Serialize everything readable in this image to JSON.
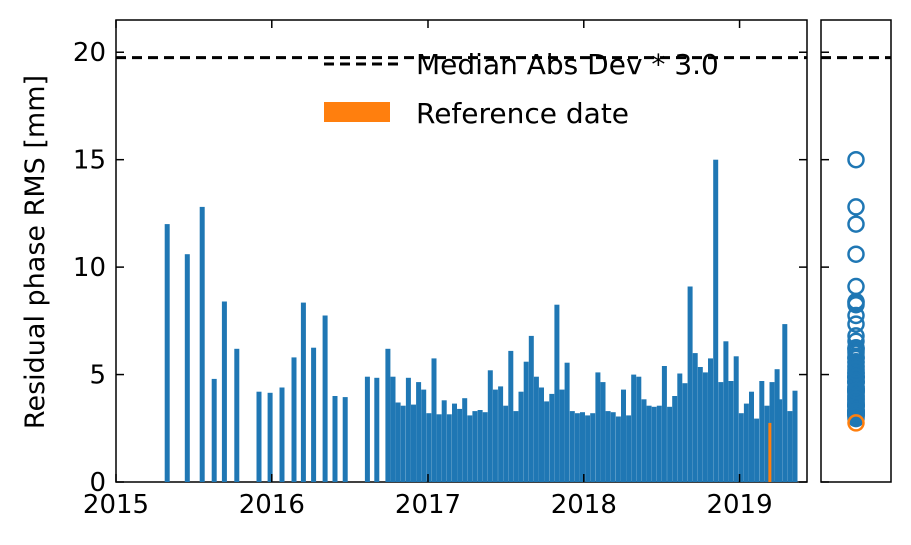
{
  "chart_data": {
    "type": "bar",
    "ylabel": "Residual phase RMS [mm]",
    "xlabel": "",
    "ylim": [
      0,
      21.5
    ],
    "xlim": [
      "2015-01-01",
      "2019-06-08"
    ],
    "yticks": [
      "0",
      "5",
      "10",
      "15",
      "20"
    ],
    "xticks": [
      {
        "date": "2015-01-01",
        "label": "2015"
      },
      {
        "date": "2016-01-01",
        "label": "2016"
      },
      {
        "date": "2017-01-01",
        "label": "2017"
      },
      {
        "date": "2018-01-01",
        "label": "2018"
      },
      {
        "date": "2019-01-01",
        "label": "2019"
      }
    ],
    "threshold": {
      "value": 19.75,
      "label": "Median Abs Dev * 3.0",
      "color": "#000000"
    },
    "reference": {
      "date": "2019-03-13",
      "value": 2.75,
      "label": "Reference date",
      "color": "#ff7f0e"
    },
    "legend_position": "top-right",
    "bar_color": "#1f77b4",
    "series": [
      {
        "points": [
          [
            "2015-05-01",
            12.0
          ],
          [
            "2015-06-17",
            10.6
          ],
          [
            "2015-07-22",
            12.8
          ],
          [
            "2015-08-19",
            4.8
          ],
          [
            "2015-09-12",
            8.4
          ],
          [
            "2015-10-11",
            6.2
          ],
          [
            "2015-12-02",
            4.2
          ],
          [
            "2015-12-28",
            4.15
          ],
          [
            "2016-01-25",
            4.4
          ],
          [
            "2016-02-22",
            5.8
          ],
          [
            "2016-03-15",
            8.35
          ],
          [
            "2016-04-08",
            6.25
          ],
          [
            "2016-05-05",
            7.75
          ],
          [
            "2016-05-28",
            4.0
          ],
          [
            "2016-06-21",
            3.95
          ],
          [
            "2016-08-12",
            4.9
          ],
          [
            "2016-09-03",
            4.85
          ],
          [
            "2016-09-29",
            6.2
          ],
          [
            "2016-10-11",
            4.9
          ],
          [
            "2016-10-23",
            3.7
          ],
          [
            "2016-11-04",
            3.55
          ],
          [
            "2016-11-16",
            4.85
          ],
          [
            "2016-11-28",
            3.6
          ],
          [
            "2016-12-10",
            4.65
          ],
          [
            "2016-12-22",
            4.3
          ],
          [
            "2017-01-03",
            3.2
          ],
          [
            "2017-01-15",
            5.75
          ],
          [
            "2017-01-27",
            3.15
          ],
          [
            "2017-02-08",
            3.8
          ],
          [
            "2017-02-20",
            3.15
          ],
          [
            "2017-03-04",
            3.65
          ],
          [
            "2017-03-16",
            3.4
          ],
          [
            "2017-03-28",
            3.9
          ],
          [
            "2017-04-09",
            3.1
          ],
          [
            "2017-04-21",
            3.3
          ],
          [
            "2017-05-03",
            3.35
          ],
          [
            "2017-05-15",
            3.25
          ],
          [
            "2017-05-27",
            5.2
          ],
          [
            "2017-06-08",
            4.3
          ],
          [
            "2017-06-20",
            4.45
          ],
          [
            "2017-07-02",
            3.55
          ],
          [
            "2017-07-14",
            6.1
          ],
          [
            "2017-07-26",
            3.3
          ],
          [
            "2017-08-07",
            4.2
          ],
          [
            "2017-08-19",
            5.6
          ],
          [
            "2017-08-31",
            6.8
          ],
          [
            "2017-09-12",
            4.9
          ],
          [
            "2017-09-24",
            4.4
          ],
          [
            "2017-10-06",
            3.75
          ],
          [
            "2017-10-18",
            4.1
          ],
          [
            "2017-10-30",
            8.25
          ],
          [
            "2017-11-11",
            4.3
          ],
          [
            "2017-11-23",
            5.55
          ],
          [
            "2017-12-05",
            3.3
          ],
          [
            "2017-12-17",
            3.2
          ],
          [
            "2017-12-29",
            3.25
          ],
          [
            "2018-01-10",
            3.1
          ],
          [
            "2018-01-22",
            3.2
          ],
          [
            "2018-02-03",
            5.1
          ],
          [
            "2018-02-15",
            4.65
          ],
          [
            "2018-02-27",
            3.3
          ],
          [
            "2018-03-11",
            3.25
          ],
          [
            "2018-03-23",
            3.05
          ],
          [
            "2018-04-04",
            4.3
          ],
          [
            "2018-04-16",
            3.1
          ],
          [
            "2018-04-28",
            5.0
          ],
          [
            "2018-05-10",
            4.9
          ],
          [
            "2018-05-22",
            3.85
          ],
          [
            "2018-06-03",
            3.55
          ],
          [
            "2018-06-15",
            3.5
          ],
          [
            "2018-06-27",
            3.55
          ],
          [
            "2018-07-09",
            5.4
          ],
          [
            "2018-07-21",
            3.5
          ],
          [
            "2018-08-02",
            4.0
          ],
          [
            "2018-08-14",
            5.05
          ],
          [
            "2018-08-26",
            4.6
          ],
          [
            "2018-09-07",
            9.1
          ],
          [
            "2018-09-19",
            6.0
          ],
          [
            "2018-10-01",
            5.35
          ],
          [
            "2018-10-13",
            5.1
          ],
          [
            "2018-10-25",
            5.75
          ],
          [
            "2018-11-06",
            15.0
          ],
          [
            "2018-11-18",
            4.65
          ],
          [
            "2018-11-30",
            6.55
          ],
          [
            "2018-12-12",
            4.7
          ],
          [
            "2018-12-24",
            5.85
          ],
          [
            "2019-01-05",
            3.2
          ],
          [
            "2019-01-17",
            3.65
          ],
          [
            "2019-01-29",
            4.2
          ],
          [
            "2019-02-10",
            2.95
          ],
          [
            "2019-02-22",
            4.7
          ],
          [
            "2019-03-06",
            3.55
          ],
          [
            "2019-03-18",
            4.65
          ],
          [
            "2019-03-30",
            5.25
          ],
          [
            "2019-04-05",
            3.85
          ],
          [
            "2019-04-17",
            7.35
          ],
          [
            "2019-04-29",
            3.3
          ],
          [
            "2019-05-11",
            4.25
          ]
        ]
      }
    ]
  }
}
